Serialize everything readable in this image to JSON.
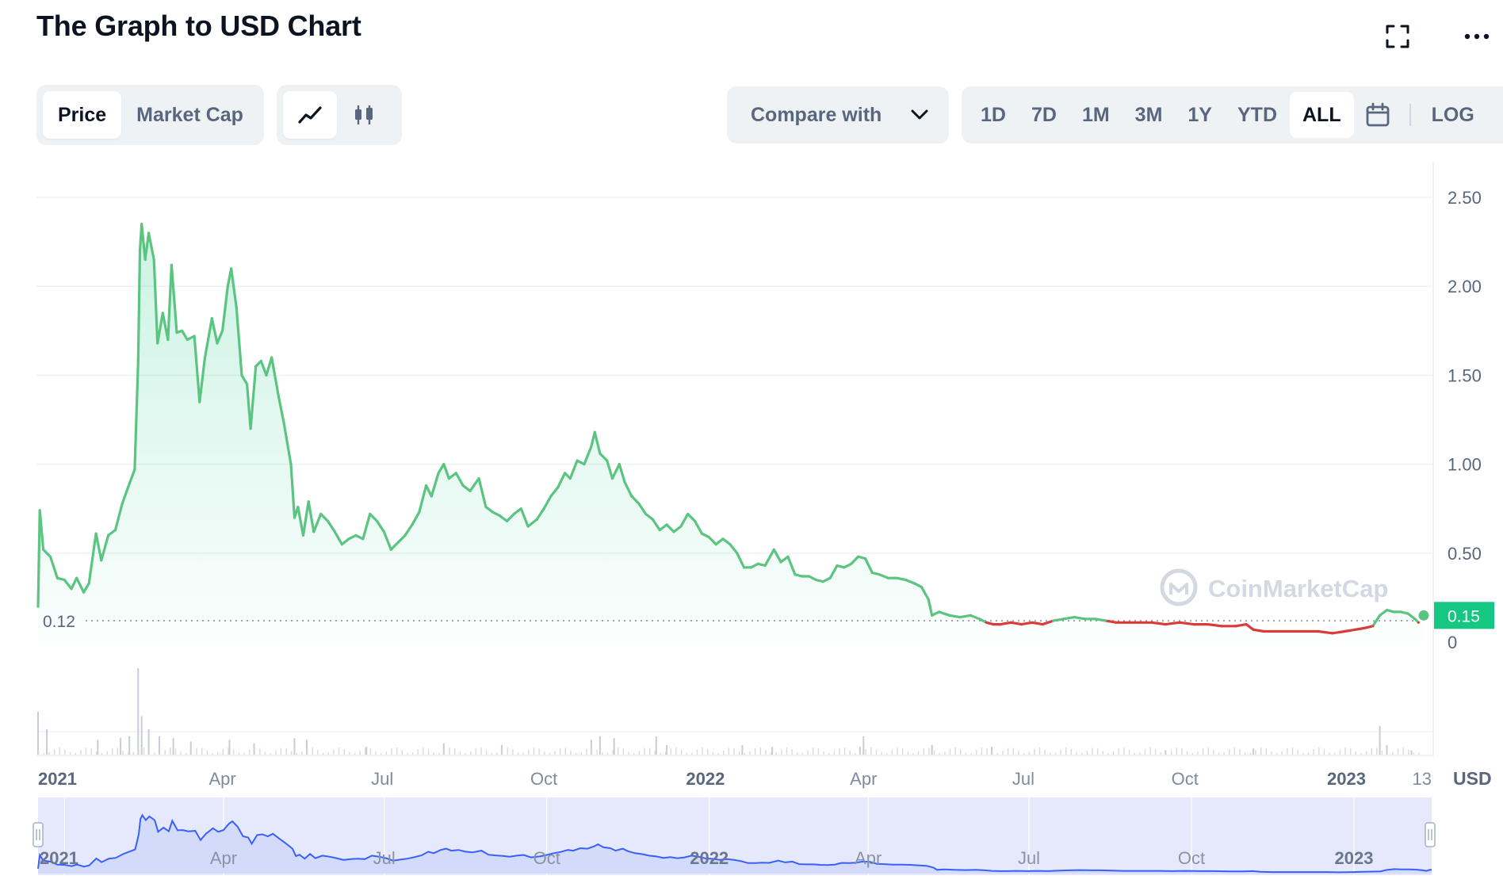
{
  "header": {
    "title": "The Graph to USD Chart"
  },
  "toolbar": {
    "view_tabs": [
      "Price",
      "Market Cap"
    ],
    "active_view": "Price",
    "chart_type_icons": [
      "line-chart-icon",
      "candlestick-icon"
    ],
    "active_chart_type": "line-chart-icon",
    "compare_label": "Compare with",
    "ranges": [
      "1D",
      "7D",
      "1M",
      "3M",
      "1Y",
      "YTD",
      "ALL"
    ],
    "active_range": "ALL",
    "log_label": "LOG",
    "calendar_icon": "calendar-icon",
    "fullscreen_icon": "fullscreen-icon",
    "more_icon": "more-icon"
  },
  "colors": {
    "up": "#16c784",
    "up_line": "#5bc480",
    "down": "#d93b3b",
    "nav_line": "#3861fb",
    "nav_fill": "#e6e9fb",
    "grid": "#eff2f5",
    "text_muted": "#58667e"
  },
  "chart_data": {
    "type": "area",
    "watermark": "CoinMarketCap",
    "currency_label": "USD",
    "y_ticks": [
      "2.50",
      "2.00",
      "1.50",
      "1.00",
      "0.50",
      "0"
    ],
    "ylim": [
      0,
      2.6
    ],
    "reference_line": {
      "label": "0.12",
      "value": 0.12
    },
    "current_price": {
      "label": "0.15",
      "value": 0.15
    },
    "x_ticks": [
      {
        "label": "2021",
        "date": "2021-01-01",
        "bold": true
      },
      {
        "label": "Apr",
        "date": "2021-04-01",
        "bold": false
      },
      {
        "label": "Jul",
        "date": "2021-07-01",
        "bold": false
      },
      {
        "label": "Oct",
        "date": "2021-10-01",
        "bold": false
      },
      {
        "label": "2022",
        "date": "2022-01-01",
        "bold": true
      },
      {
        "label": "Apr",
        "date": "2022-04-01",
        "bold": false
      },
      {
        "label": "Jul",
        "date": "2022-07-01",
        "bold": false
      },
      {
        "label": "Oct",
        "date": "2022-10-01",
        "bold": false
      },
      {
        "label": "2023",
        "date": "2023-01-01",
        "bold": true
      },
      {
        "label": "13",
        "date": "2023-02-13",
        "bold": false
      }
    ],
    "navigator_ticks": [
      {
        "label": "2021",
        "date": "2021-01-01",
        "bold": true
      },
      {
        "label": "Apr",
        "date": "2021-04-01",
        "bold": false
      },
      {
        "label": "Jul",
        "date": "2021-07-01",
        "bold": false
      },
      {
        "label": "Oct",
        "date": "2021-10-01",
        "bold": false
      },
      {
        "label": "2022",
        "date": "2022-01-01",
        "bold": true
      },
      {
        "label": "Apr",
        "date": "2022-04-01",
        "bold": false
      },
      {
        "label": "Jul",
        "date": "2022-07-01",
        "bold": false
      },
      {
        "label": "Oct",
        "date": "2022-10-01",
        "bold": false
      },
      {
        "label": "2023",
        "date": "2023-01-01",
        "bold": true
      }
    ],
    "x_start": "2020-12-17",
    "x_end": "2023-02-14",
    "series": [
      {
        "points": [
          [
            "2020-12-17",
            0.2
          ],
          [
            "2020-12-18",
            0.74
          ],
          [
            "2020-12-20",
            0.52
          ],
          [
            "2020-12-24",
            0.48
          ],
          [
            "2020-12-28",
            0.36
          ],
          [
            "2021-01-01",
            0.35
          ],
          [
            "2021-01-05",
            0.3
          ],
          [
            "2021-01-08",
            0.36
          ],
          [
            "2021-01-12",
            0.28
          ],
          [
            "2021-01-15",
            0.33
          ],
          [
            "2021-01-19",
            0.61
          ],
          [
            "2021-01-22",
            0.46
          ],
          [
            "2021-01-26",
            0.6
          ],
          [
            "2021-01-30",
            0.63
          ],
          [
            "2021-02-03",
            0.78
          ],
          [
            "2021-02-07",
            0.89
          ],
          [
            "2021-02-10",
            0.97
          ],
          [
            "2021-02-12",
            1.58
          ],
          [
            "2021-02-13",
            2.2
          ],
          [
            "2021-02-14",
            2.35
          ],
          [
            "2021-02-16",
            2.15
          ],
          [
            "2021-02-18",
            2.3
          ],
          [
            "2021-02-21",
            2.15
          ],
          [
            "2021-02-23",
            1.68
          ],
          [
            "2021-02-26",
            1.85
          ],
          [
            "2021-03-01",
            1.7
          ],
          [
            "2021-03-03",
            2.12
          ],
          [
            "2021-03-06",
            1.74
          ],
          [
            "2021-03-09",
            1.75
          ],
          [
            "2021-03-12",
            1.7
          ],
          [
            "2021-03-16",
            1.72
          ],
          [
            "2021-03-19",
            1.35
          ],
          [
            "2021-03-22",
            1.6
          ],
          [
            "2021-03-26",
            1.82
          ],
          [
            "2021-03-29",
            1.68
          ],
          [
            "2021-04-01",
            1.75
          ],
          [
            "2021-04-04",
            2.0
          ],
          [
            "2021-04-06",
            2.1
          ],
          [
            "2021-04-09",
            1.88
          ],
          [
            "2021-04-12",
            1.5
          ],
          [
            "2021-04-15",
            1.45
          ],
          [
            "2021-04-17",
            1.2
          ],
          [
            "2021-04-20",
            1.55
          ],
          [
            "2021-04-23",
            1.58
          ],
          [
            "2021-04-26",
            1.5
          ],
          [
            "2021-04-29",
            1.6
          ],
          [
            "2021-05-03",
            1.38
          ],
          [
            "2021-05-06",
            1.23
          ],
          [
            "2021-05-10",
            1.0
          ],
          [
            "2021-05-12",
            0.7
          ],
          [
            "2021-05-14",
            0.76
          ],
          [
            "2021-05-17",
            0.6
          ],
          [
            "2021-05-20",
            0.79
          ],
          [
            "2021-05-23",
            0.62
          ],
          [
            "2021-05-27",
            0.72
          ],
          [
            "2021-05-31",
            0.68
          ],
          [
            "2021-06-04",
            0.62
          ],
          [
            "2021-06-08",
            0.55
          ],
          [
            "2021-06-12",
            0.58
          ],
          [
            "2021-06-16",
            0.6
          ],
          [
            "2021-06-20",
            0.58
          ],
          [
            "2021-06-24",
            0.72
          ],
          [
            "2021-06-28",
            0.68
          ],
          [
            "2021-07-02",
            0.62
          ],
          [
            "2021-07-06",
            0.52
          ],
          [
            "2021-07-10",
            0.56
          ],
          [
            "2021-07-14",
            0.6
          ],
          [
            "2021-07-18",
            0.66
          ],
          [
            "2021-07-22",
            0.73
          ],
          [
            "2021-07-26",
            0.88
          ],
          [
            "2021-07-29",
            0.82
          ],
          [
            "2021-08-02",
            0.95
          ],
          [
            "2021-08-05",
            1.0
          ],
          [
            "2021-08-08",
            0.92
          ],
          [
            "2021-08-12",
            0.95
          ],
          [
            "2021-08-16",
            0.88
          ],
          [
            "2021-08-20",
            0.85
          ],
          [
            "2021-08-25",
            0.92
          ],
          [
            "2021-08-29",
            0.76
          ],
          [
            "2021-09-02",
            0.73
          ],
          [
            "2021-09-06",
            0.71
          ],
          [
            "2021-09-10",
            0.68
          ],
          [
            "2021-09-14",
            0.72
          ],
          [
            "2021-09-18",
            0.75
          ],
          [
            "2021-09-22",
            0.65
          ],
          [
            "2021-09-27",
            0.69
          ],
          [
            "2021-10-01",
            0.75
          ],
          [
            "2021-10-05",
            0.82
          ],
          [
            "2021-10-09",
            0.87
          ],
          [
            "2021-10-13",
            0.95
          ],
          [
            "2021-10-16",
            0.92
          ],
          [
            "2021-10-20",
            1.02
          ],
          [
            "2021-10-24",
            1.0
          ],
          [
            "2021-10-28",
            1.1
          ],
          [
            "2021-10-30",
            1.18
          ],
          [
            "2021-11-02",
            1.06
          ],
          [
            "2021-11-06",
            1.02
          ],
          [
            "2021-11-09",
            0.92
          ],
          [
            "2021-11-13",
            1.0
          ],
          [
            "2021-11-16",
            0.9
          ],
          [
            "2021-11-20",
            0.82
          ],
          [
            "2021-11-24",
            0.78
          ],
          [
            "2021-11-28",
            0.72
          ],
          [
            "2021-12-02",
            0.69
          ],
          [
            "2021-12-06",
            0.63
          ],
          [
            "2021-12-10",
            0.66
          ],
          [
            "2021-12-14",
            0.62
          ],
          [
            "2021-12-18",
            0.65
          ],
          [
            "2021-12-22",
            0.72
          ],
          [
            "2021-12-26",
            0.68
          ],
          [
            "2021-12-30",
            0.61
          ],
          [
            "2022-01-03",
            0.59
          ],
          [
            "2022-01-07",
            0.55
          ],
          [
            "2022-01-11",
            0.58
          ],
          [
            "2022-01-15",
            0.55
          ],
          [
            "2022-01-19",
            0.5
          ],
          [
            "2022-01-23",
            0.42
          ],
          [
            "2022-01-27",
            0.42
          ],
          [
            "2022-01-31",
            0.44
          ],
          [
            "2022-02-04",
            0.43
          ],
          [
            "2022-02-09",
            0.52
          ],
          [
            "2022-02-13",
            0.45
          ],
          [
            "2022-02-17",
            0.48
          ],
          [
            "2022-02-21",
            0.38
          ],
          [
            "2022-02-25",
            0.37
          ],
          [
            "2022-03-01",
            0.37
          ],
          [
            "2022-03-05",
            0.35
          ],
          [
            "2022-03-09",
            0.34
          ],
          [
            "2022-03-13",
            0.36
          ],
          [
            "2022-03-17",
            0.43
          ],
          [
            "2022-03-21",
            0.42
          ],
          [
            "2022-03-25",
            0.44
          ],
          [
            "2022-03-29",
            0.48
          ],
          [
            "2022-04-02",
            0.47
          ],
          [
            "2022-04-06",
            0.39
          ],
          [
            "2022-04-10",
            0.38
          ],
          [
            "2022-04-15",
            0.36
          ],
          [
            "2022-04-20",
            0.36
          ],
          [
            "2022-04-25",
            0.35
          ],
          [
            "2022-04-30",
            0.33
          ],
          [
            "2022-05-04",
            0.31
          ],
          [
            "2022-05-08",
            0.24
          ],
          [
            "2022-05-10",
            0.15
          ],
          [
            "2022-05-14",
            0.17
          ],
          [
            "2022-05-20",
            0.15
          ],
          [
            "2022-05-26",
            0.14
          ],
          [
            "2022-06-01",
            0.15
          ],
          [
            "2022-06-06",
            0.13
          ],
          [
            "2022-06-10",
            0.11
          ],
          [
            "2022-06-14",
            0.1
          ],
          [
            "2022-06-18",
            0.1
          ],
          [
            "2022-06-24",
            0.11
          ],
          [
            "2022-06-30",
            0.1
          ],
          [
            "2022-07-06",
            0.11
          ],
          [
            "2022-07-12",
            0.1
          ],
          [
            "2022-07-18",
            0.12
          ],
          [
            "2022-07-24",
            0.13
          ],
          [
            "2022-07-30",
            0.14
          ],
          [
            "2022-08-05",
            0.13
          ],
          [
            "2022-08-11",
            0.13
          ],
          [
            "2022-08-17",
            0.12
          ],
          [
            "2022-08-23",
            0.11
          ],
          [
            "2022-08-29",
            0.11
          ],
          [
            "2022-09-05",
            0.11
          ],
          [
            "2022-09-12",
            0.11
          ],
          [
            "2022-09-20",
            0.1
          ],
          [
            "2022-09-28",
            0.11
          ],
          [
            "2022-10-06",
            0.1
          ],
          [
            "2022-10-14",
            0.1
          ],
          [
            "2022-10-22",
            0.09
          ],
          [
            "2022-10-30",
            0.09
          ],
          [
            "2022-11-05",
            0.1
          ],
          [
            "2022-11-09",
            0.07
          ],
          [
            "2022-11-15",
            0.06
          ],
          [
            "2022-11-22",
            0.06
          ],
          [
            "2022-11-30",
            0.06
          ],
          [
            "2022-12-08",
            0.06
          ],
          [
            "2022-12-16",
            0.06
          ],
          [
            "2022-12-24",
            0.05
          ],
          [
            "2022-12-31",
            0.06
          ],
          [
            "2023-01-06",
            0.07
          ],
          [
            "2023-01-12",
            0.08
          ],
          [
            "2023-01-16",
            0.09
          ],
          [
            "2023-01-20",
            0.15
          ],
          [
            "2023-01-24",
            0.18
          ],
          [
            "2023-01-28",
            0.17
          ],
          [
            "2023-02-01",
            0.17
          ],
          [
            "2023-02-05",
            0.16
          ],
          [
            "2023-02-09",
            0.13
          ],
          [
            "2023-02-11",
            0.11
          ],
          [
            "2023-02-13",
            0.15
          ],
          [
            "2023-02-14",
            0.15
          ]
        ]
      }
    ],
    "volume_spikes": [
      [
        "2020-12-17",
        0.5
      ],
      [
        "2020-12-22",
        0.3
      ],
      [
        "2021-01-20",
        0.18
      ],
      [
        "2021-02-02",
        0.2
      ],
      [
        "2021-02-07",
        0.22
      ],
      [
        "2021-02-12",
        1.0
      ],
      [
        "2021-02-14",
        0.45
      ],
      [
        "2021-02-18",
        0.3
      ],
      [
        "2021-02-24",
        0.22
      ],
      [
        "2021-03-04",
        0.2
      ],
      [
        "2021-03-14",
        0.16
      ],
      [
        "2021-04-05",
        0.18
      ],
      [
        "2021-04-19",
        0.14
      ],
      [
        "2021-05-12",
        0.2
      ],
      [
        "2021-05-19",
        0.18
      ],
      [
        "2021-06-22",
        0.1
      ],
      [
        "2021-08-05",
        0.14
      ],
      [
        "2021-09-07",
        0.12
      ],
      [
        "2021-10-28",
        0.18
      ],
      [
        "2021-11-02",
        0.22
      ],
      [
        "2021-11-10",
        0.2
      ],
      [
        "2021-12-04",
        0.22
      ],
      [
        "2021-12-10",
        0.12
      ],
      [
        "2022-01-22",
        0.12
      ],
      [
        "2022-02-08",
        0.1
      ],
      [
        "2022-03-30",
        0.1
      ],
      [
        "2022-04-01",
        0.22
      ],
      [
        "2022-05-10",
        0.12
      ],
      [
        "2022-06-13",
        0.1
      ],
      [
        "2022-09-20",
        0.06
      ],
      [
        "2022-11-09",
        0.08
      ],
      [
        "2023-01-20",
        0.34
      ],
      [
        "2023-01-24",
        0.12
      ],
      [
        "2023-02-07",
        0.06
      ]
    ]
  }
}
